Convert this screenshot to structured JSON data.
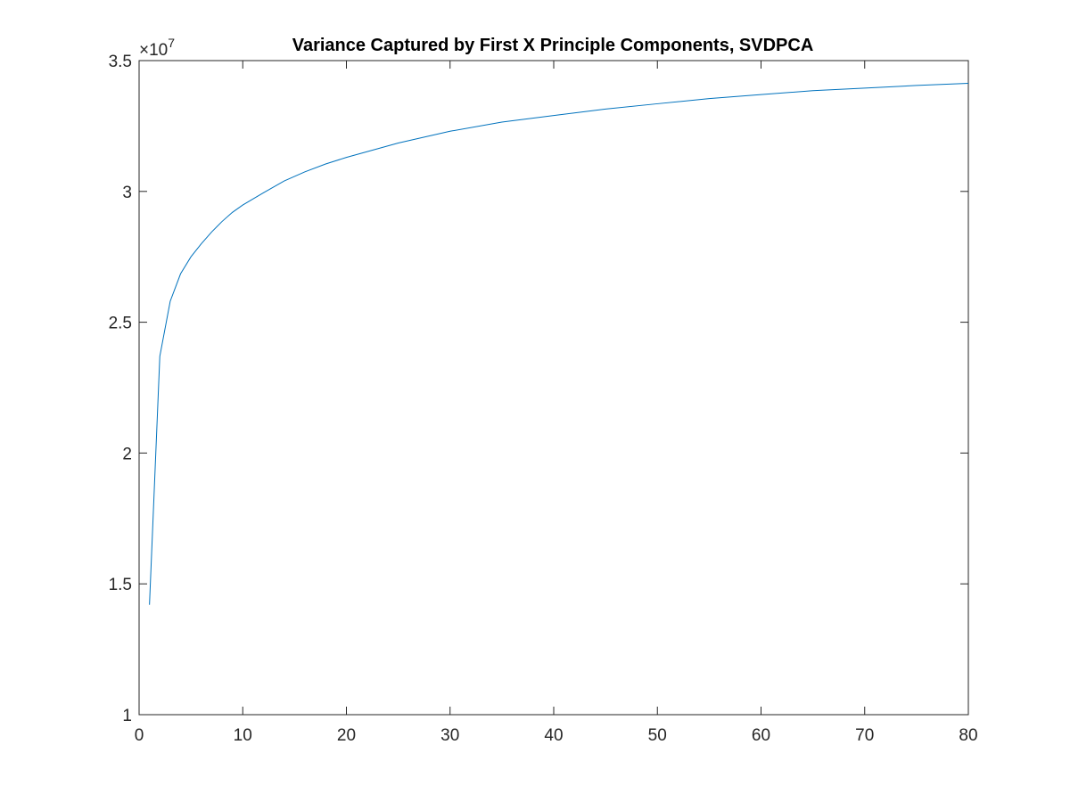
{
  "chart_data": {
    "type": "line",
    "title": "Variance Captured by First X Principle Components, SVDPCA",
    "xlabel": "",
    "ylabel": "",
    "xlim": [
      0,
      80
    ],
    "ylim": [
      10000000,
      35000000
    ],
    "x_ticks": [
      0,
      10,
      20,
      30,
      40,
      50,
      60,
      70,
      80
    ],
    "x_tick_labels": [
      "0",
      "10",
      "20",
      "30",
      "40",
      "50",
      "60",
      "70",
      "80"
    ],
    "y_ticks": [
      10000000,
      15000000,
      20000000,
      25000000,
      30000000,
      35000000
    ],
    "y_tick_labels": [
      "1",
      "1.5",
      "2",
      "2.5",
      "3",
      "3.5"
    ],
    "y_exponent_base": "×10",
    "y_exponent": "7",
    "grid": false,
    "line_color": "#0072bd",
    "series": [
      {
        "x": [
          1,
          2,
          3,
          4,
          5,
          6,
          7,
          8,
          9,
          10,
          12,
          14,
          16,
          18,
          20,
          25,
          30,
          35,
          40,
          45,
          50,
          55,
          60,
          65,
          70,
          75,
          80
        ],
        "values": [
          14200000,
          23700000,
          25800000,
          26850000,
          27500000,
          28000000,
          28450000,
          28850000,
          29200000,
          29480000,
          29950000,
          30400000,
          30750000,
          31050000,
          31300000,
          31850000,
          32300000,
          32650000,
          32900000,
          33150000,
          33350000,
          33550000,
          33700000,
          33850000,
          33950000,
          34050000,
          34130000
        ]
      }
    ]
  }
}
